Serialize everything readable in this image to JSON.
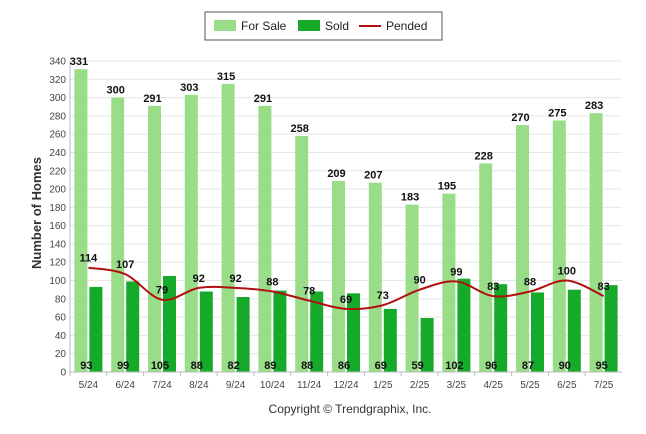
{
  "chart_data": {
    "type": "bar",
    "title": "",
    "xlabel": "",
    "ylabel": "Number of Homes",
    "ylim": [
      0,
      340
    ],
    "yticks": [
      0,
      20,
      40,
      60,
      80,
      100,
      120,
      140,
      160,
      180,
      200,
      220,
      240,
      260,
      280,
      300,
      320,
      340
    ],
    "grid": true,
    "legend_position": "top-center",
    "categories": [
      "5/24",
      "6/24",
      "7/24",
      "8/24",
      "9/24",
      "10/24",
      "11/24",
      "12/24",
      "1/25",
      "2/25",
      "3/25",
      "4/25",
      "5/25",
      "6/25",
      "7/25"
    ],
    "series": [
      {
        "name": "For Sale",
        "kind": "bar",
        "color": "#99dd88",
        "values": [
          331,
          300,
          291,
          303,
          315,
          291,
          258,
          209,
          207,
          183,
          195,
          228,
          270,
          275,
          283
        ]
      },
      {
        "name": "Sold",
        "kind": "bar",
        "color": "#16aa2a",
        "values": [
          93,
          99,
          105,
          88,
          82,
          89,
          88,
          86,
          69,
          59,
          102,
          96,
          87,
          90,
          95
        ]
      },
      {
        "name": "Pended",
        "kind": "line",
        "color": "#b01010",
        "values": [
          114,
          107,
          79,
          92,
          92,
          88,
          78,
          69,
          73,
          90,
          99,
          83,
          88,
          100,
          83
        ]
      }
    ]
  },
  "footer": {
    "copyright": "Copyright © Trendgraphix, Inc."
  }
}
